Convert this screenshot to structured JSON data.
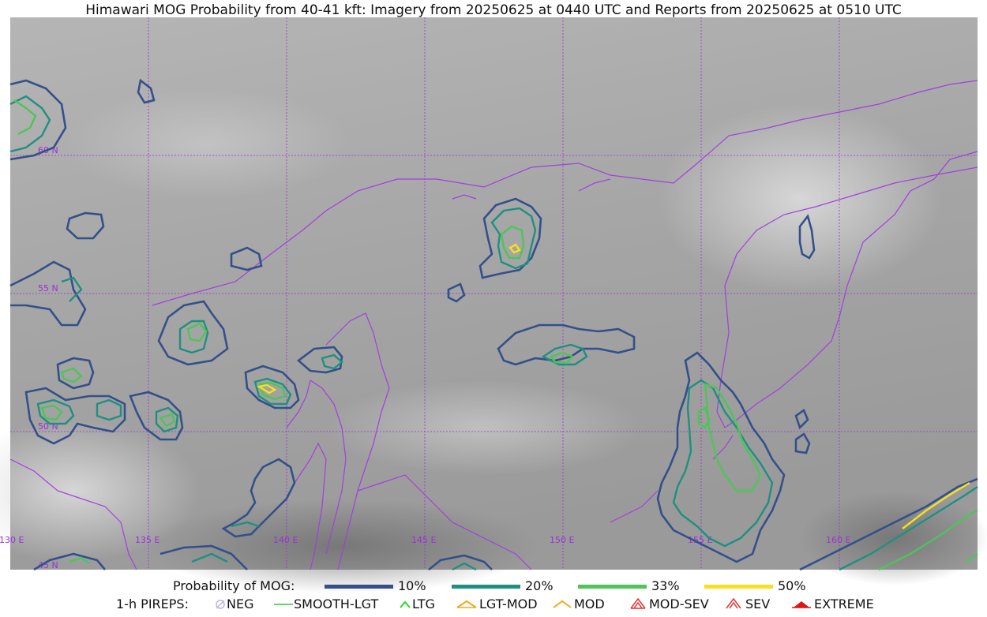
{
  "title": "Himawari MOG Probability from 40-41 kft: Imagery from 20250625 at 0440 UTC and Reports from 20250625 at 0510 UTC",
  "map": {
    "lat_labels": [
      "60 N",
      "55 N",
      "50 N",
      "45 N"
    ],
    "lon_labels": [
      "130 E",
      "135 E",
      "140 E",
      "145 E",
      "150 E",
      "155 E",
      "160 E"
    ],
    "grid_color": "#9b30d9",
    "coast_color": "#a040e0"
  },
  "legend": {
    "probability_label": "Probability of MOG:",
    "levels": [
      {
        "label": "10%",
        "color": "#33508a"
      },
      {
        "label": "20%",
        "color": "#1f9080"
      },
      {
        "label": "33%",
        "color": "#4ec45a"
      },
      {
        "label": "50%",
        "color": "#f5e11e"
      }
    ],
    "pireps_label": "1-h PIREPS:",
    "pireps": [
      {
        "label": "NEG",
        "icon": "neg-icon",
        "color": "#b9b4f0"
      },
      {
        "label": "SMOOTH-LGT",
        "icon": "smooth-lgt-icon",
        "color": "#33cc33"
      },
      {
        "label": "LTG",
        "icon": "ltg-icon",
        "color": "#22dd22"
      },
      {
        "label": "LGT-MOD",
        "icon": "lgt-mod-icon",
        "color": "#f2a81e"
      },
      {
        "label": "MOD",
        "icon": "mod-icon",
        "color": "#f2a81e"
      },
      {
        "label": "MOD-SEV",
        "icon": "mod-sev-icon",
        "color": "#e53030"
      },
      {
        "label": "SEV",
        "icon": "sev-icon",
        "color": "#e53030"
      },
      {
        "label": "EXTREME",
        "icon": "extreme-icon",
        "color": "#e01515"
      }
    ]
  }
}
